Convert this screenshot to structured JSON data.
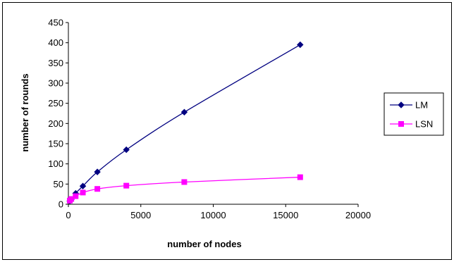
{
  "chart_data": {
    "type": "scatter",
    "title": "",
    "xlabel": "number of nodes",
    "ylabel": "number of rounds",
    "xlim": [
      0,
      20000
    ],
    "ylim": [
      0,
      450
    ],
    "xticks": [
      0,
      5000,
      10000,
      15000,
      20000
    ],
    "yticks": [
      0,
      50,
      100,
      150,
      200,
      250,
      300,
      350,
      400,
      450
    ],
    "grid": false,
    "legend_position": "right",
    "series": [
      {
        "name": "LM",
        "color": "#000080",
        "marker": "diamond",
        "points": [
          [
            100,
            8
          ],
          [
            200,
            12
          ],
          [
            500,
            27
          ],
          [
            1000,
            45
          ],
          [
            2000,
            80
          ],
          [
            4000,
            135
          ],
          [
            8000,
            228
          ],
          [
            16000,
            395
          ]
        ]
      },
      {
        "name": "LSN",
        "color": "#ff00ff",
        "marker": "square",
        "points": [
          [
            100,
            9
          ],
          [
            200,
            13
          ],
          [
            500,
            20
          ],
          [
            1000,
            29
          ],
          [
            2000,
            38
          ],
          [
            4000,
            46
          ],
          [
            8000,
            55
          ],
          [
            16000,
            67
          ]
        ]
      }
    ]
  }
}
